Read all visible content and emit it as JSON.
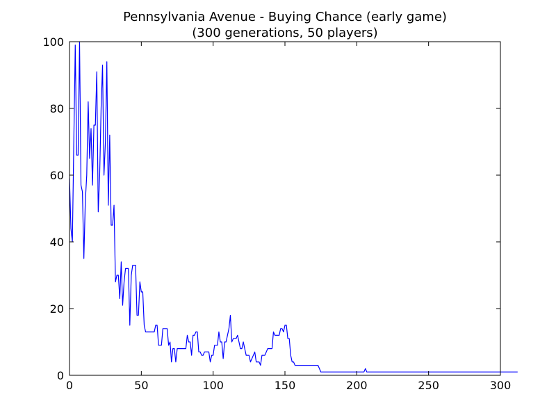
{
  "chart_data": {
    "type": "line",
    "title": "Pennsylvania Avenue - Buying Chance (early game)",
    "subtitle": "(300 generations, 50 players)",
    "xlabel": "",
    "ylabel": "",
    "xlim": [
      0,
      300
    ],
    "ylim": [
      0,
      100
    ],
    "x_ticks": [
      0,
      50,
      100,
      150,
      200,
      250,
      300
    ],
    "y_ticks": [
      0,
      20,
      40,
      60,
      80,
      100
    ],
    "grid": false,
    "line_color": "#0000ff",
    "series": [
      {
        "values": [
          59,
          44,
          40,
          70,
          99,
          66,
          66,
          100,
          57,
          55,
          35,
          52,
          60,
          82,
          65,
          74,
          57,
          75,
          75,
          91,
          49,
          60,
          80,
          93,
          60,
          70,
          94,
          51,
          72,
          45,
          45,
          51,
          28,
          30,
          30,
          23,
          34,
          21,
          28,
          32,
          32,
          32,
          15,
          30,
          33,
          33,
          33,
          18,
          18,
          28,
          25,
          25,
          15,
          13,
          13,
          13,
          13,
          13,
          13,
          13,
          15,
          15,
          9,
          9,
          9,
          14,
          14,
          14,
          14,
          9,
          10,
          4,
          8,
          8,
          4,
          8,
          8,
          8,
          8,
          8,
          8,
          8,
          12,
          10,
          10,
          6,
          12,
          12,
          13,
          13,
          7,
          7,
          6,
          6,
          7,
          7,
          7,
          7,
          4,
          6,
          6,
          9,
          9,
          9,
          13,
          10,
          10,
          5,
          10,
          10,
          12,
          14,
          18,
          10,
          11,
          11,
          11,
          12,
          10,
          8,
          8,
          10,
          8,
          6,
          6,
          6,
          4,
          5,
          6,
          7,
          4,
          4,
          4,
          3,
          6,
          6,
          6,
          7,
          8,
          8,
          8,
          8,
          13,
          12,
          12,
          12,
          12,
          14,
          14,
          13,
          15,
          15,
          11,
          11,
          6,
          4,
          4,
          3,
          3,
          3,
          3,
          3,
          3,
          3,
          3,
          3,
          3,
          3,
          3,
          3,
          3,
          3,
          3,
          3,
          2,
          1,
          1,
          1,
          1,
          1,
          1,
          1,
          1,
          1,
          1,
          1,
          1,
          1,
          1,
          1,
          1,
          1,
          1,
          1,
          1,
          1,
          1,
          1,
          1,
          1,
          1,
          1,
          1,
          1,
          1,
          1,
          2,
          1,
          1,
          1,
          1,
          1,
          1,
          1,
          1,
          1,
          1,
          1,
          1,
          1,
          1,
          1,
          1,
          1,
          1,
          1,
          1,
          1,
          1,
          1,
          1,
          1,
          1,
          1,
          1,
          1,
          1,
          1,
          1,
          1,
          1,
          1,
          1,
          1,
          1,
          1,
          1,
          1,
          1,
          1,
          1,
          1,
          1,
          1,
          1,
          1,
          1,
          1,
          1,
          1,
          1,
          1,
          1,
          1,
          1,
          1,
          1,
          1,
          1,
          1,
          1,
          1,
          1,
          1,
          1,
          1,
          1,
          1,
          1,
          1,
          1,
          1,
          1,
          1,
          1,
          1,
          1,
          1,
          1,
          1,
          1,
          1,
          1,
          1,
          1,
          1,
          1,
          1,
          1,
          1,
          1,
          1,
          1,
          1,
          1,
          1,
          1,
          1,
          1,
          1,
          1,
          1,
          1
        ]
      }
    ]
  }
}
